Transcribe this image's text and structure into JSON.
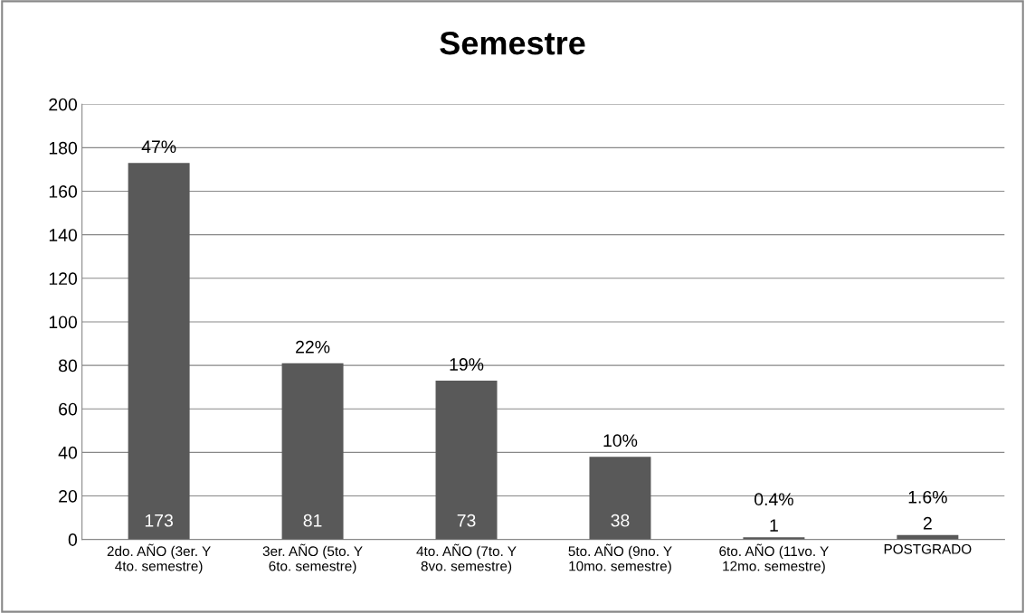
{
  "chart_data": {
    "type": "bar",
    "title": "Semestre",
    "categories": [
      "2do. AÑO (3er. Y\n4to. semestre)",
      "3er. AÑO (5to. Y\n6to. semestre)",
      "4to. AÑO (7to. Y\n8vo. semestre)",
      "5to. AÑO (9no. Y\n10mo. semestre)",
      "6to. AÑO (11vo. Y\n12mo. semestre)",
      "POSTGRADO"
    ],
    "values": [
      173,
      81,
      73,
      38,
      1,
      2
    ],
    "value_labels": [
      "173",
      "81",
      "73",
      "38",
      "1",
      "2"
    ],
    "annotations": [
      {
        "text": "47%",
        "x": "2do. AÑO (3er. Y\n4to. semestre)",
        "y": 173
      },
      {
        "text": "22%",
        "x": "3er. AÑO (5to. Y\n6to. semestre)",
        "y": 81
      },
      {
        "text": "19%",
        "x": "4to. AÑO (7to. Y\n8vo. semestre)",
        "y": 73
      },
      {
        "text": "10%",
        "x": "5to. AÑO (9no. Y\n10mo. semestre)",
        "y": 38
      },
      {
        "text": "0.4%",
        "x": "6to. AÑO (11vo. Y\n12mo. semestre)",
        "y": 1
      },
      {
        "text": "1.6%",
        "x": "POSTGRADO",
        "y": 2
      }
    ],
    "color": "#595959",
    "ylim": [
      0,
      200
    ],
    "yticks": [
      0,
      20,
      40,
      60,
      80,
      100,
      120,
      140,
      160,
      180,
      200
    ],
    "grid": "y"
  }
}
